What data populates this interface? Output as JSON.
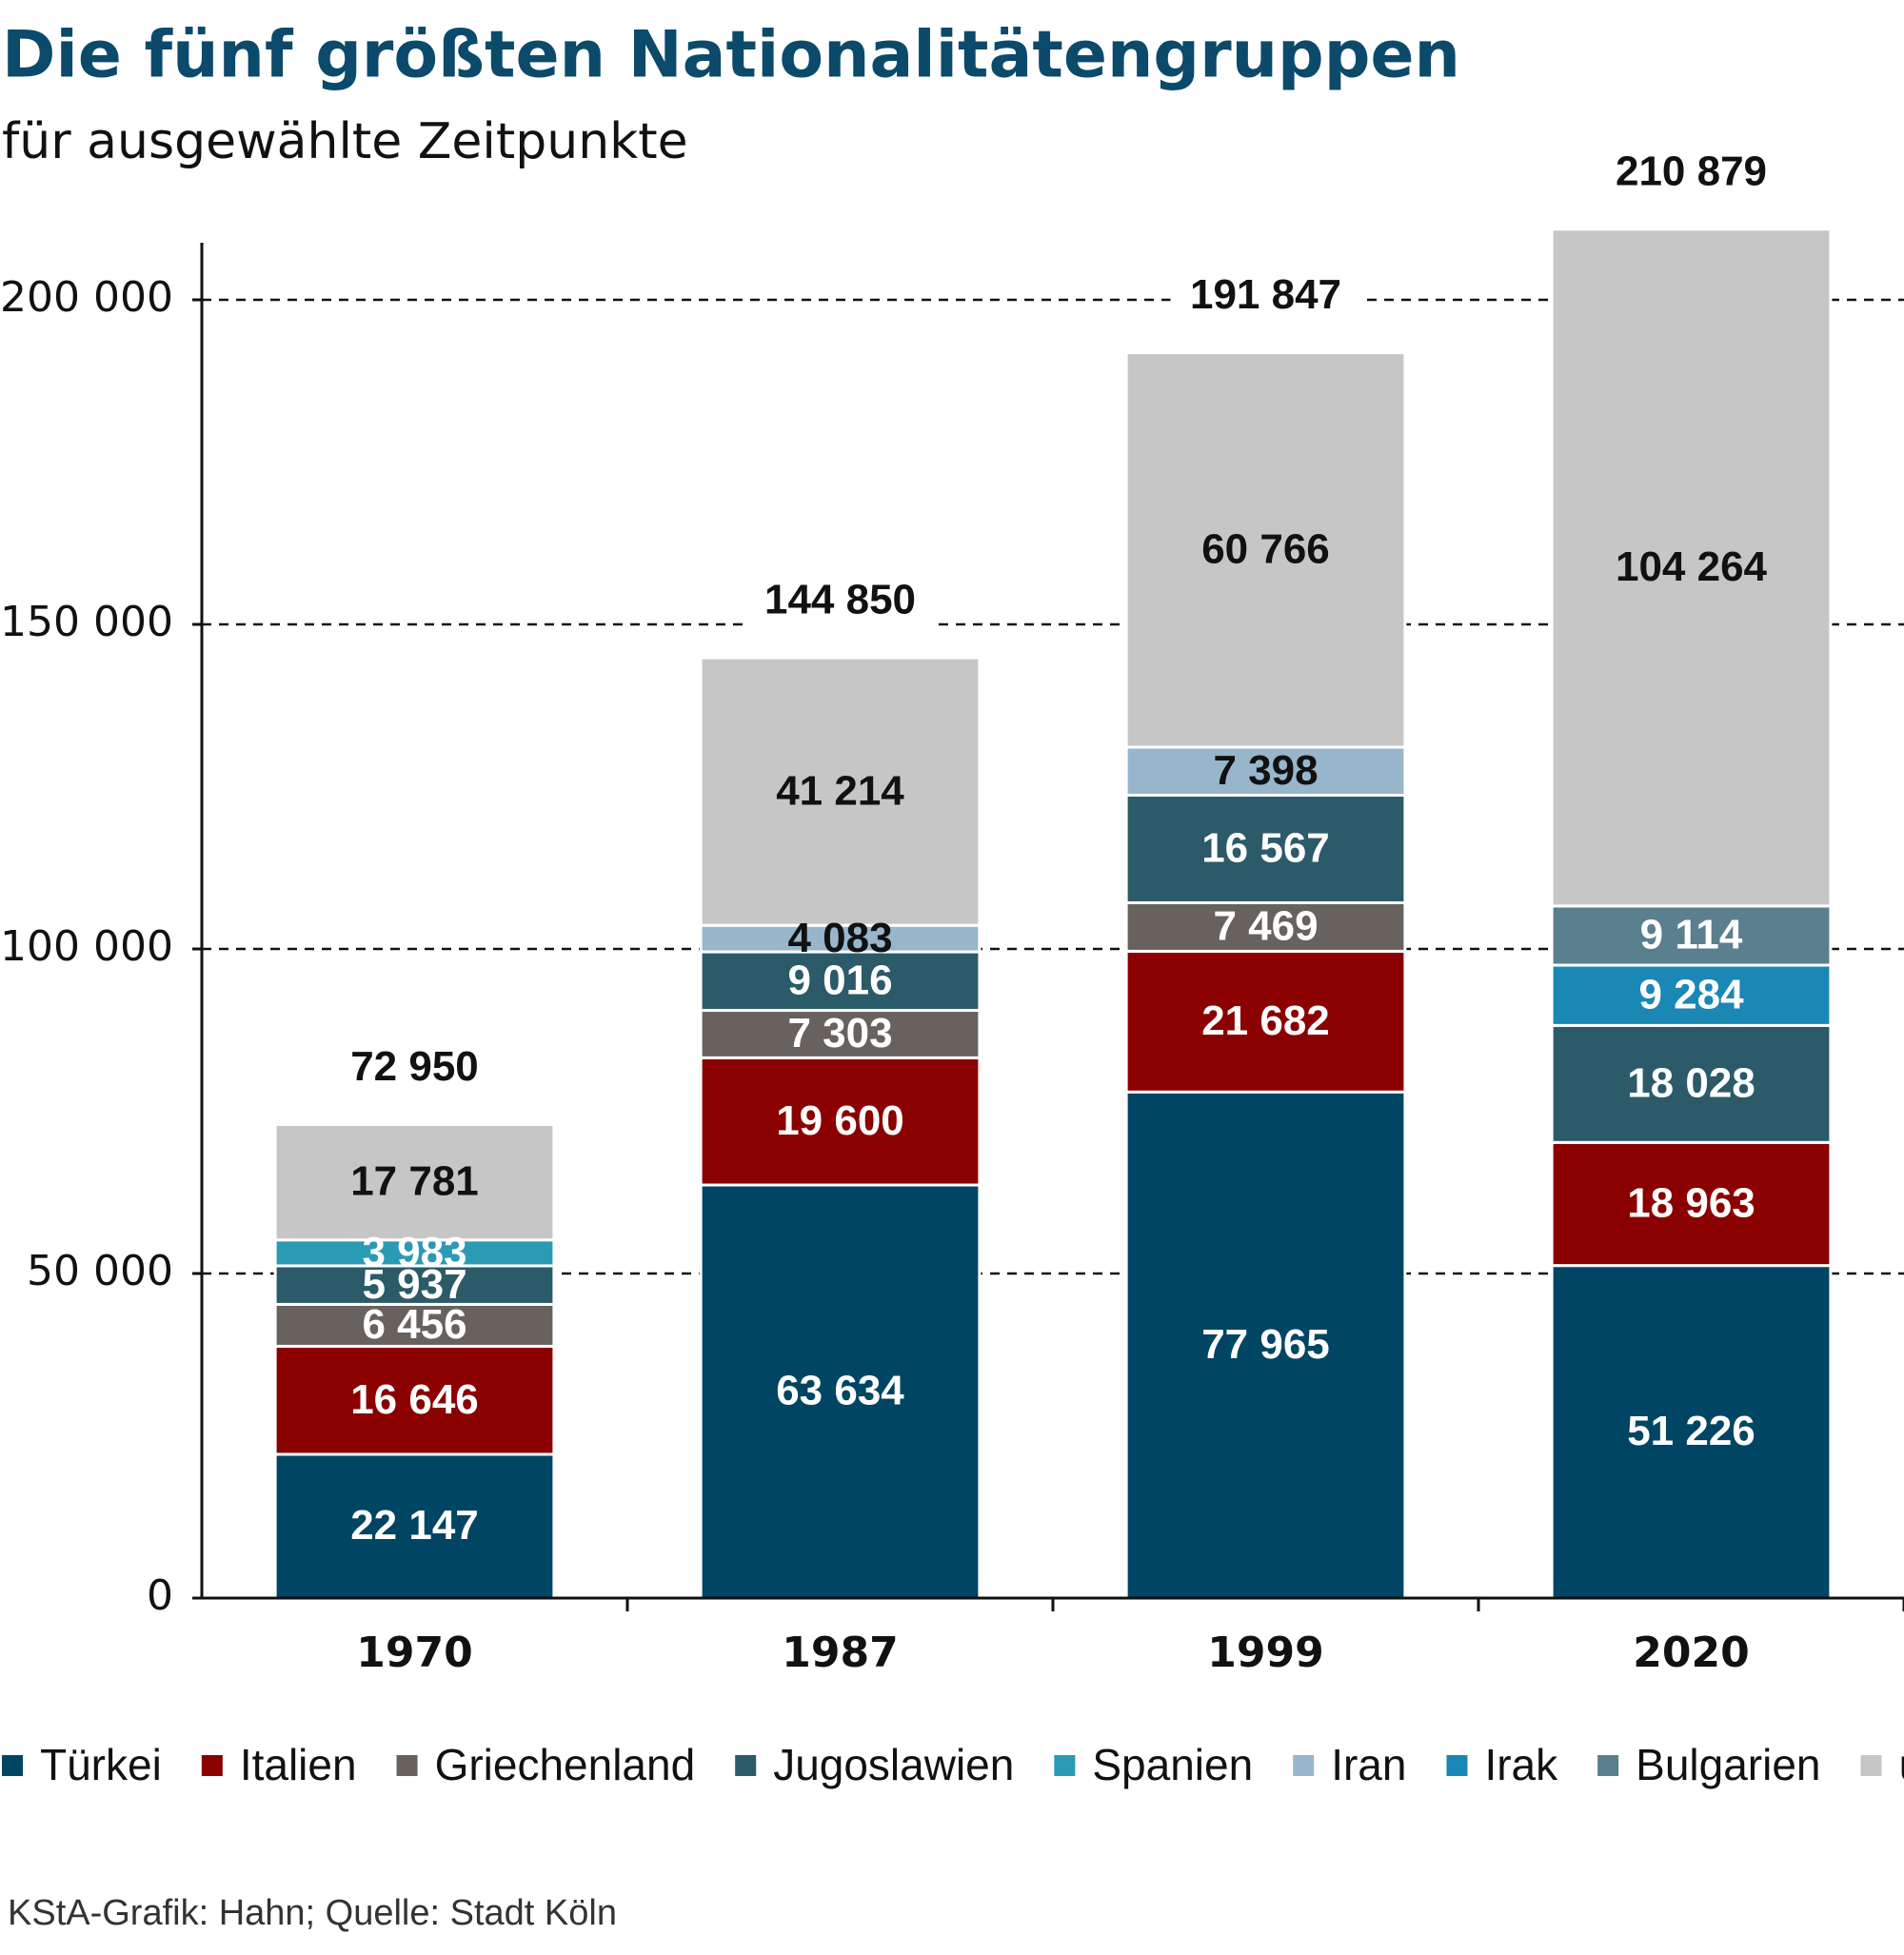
{
  "chart_data": {
    "type": "stacked-bar",
    "title": "Die fünf größten Nationalitätengruppen",
    "subtitle": "für ausgewählte Zeitpunkte",
    "source": "KStA-Grafik: Hahn; Quelle: Stadt Köln",
    "categories": [
      "1970",
      "1987",
      "1999",
      "2020"
    ],
    "series": [
      {
        "name": "Türkei",
        "color": "#004563",
        "values": [
          22147,
          63634,
          77965,
          51226
        ],
        "value_labels": [
          "22 147",
          "63 634",
          "77 965",
          "51 226"
        ]
      },
      {
        "name": "Italien",
        "color": "#8b0000",
        "values": [
          16646,
          19600,
          21682,
          18963
        ],
        "value_labels": [
          "16 646",
          "19 600",
          "21 682",
          "18 963"
        ]
      },
      {
        "name": "Griechenland",
        "color": "#67625d",
        "values": [
          6456,
          7303,
          7469,
          null
        ],
        "value_labels": [
          "6 456",
          "7 303",
          "7 469",
          null
        ]
      },
      {
        "name": "Jugoslawien",
        "color": "#2b5a68",
        "values": [
          5937,
          9016,
          16567,
          18028
        ],
        "value_labels": [
          "5 937",
          "9 016",
          "16 567",
          "18 028"
        ]
      },
      {
        "name": "Spanien",
        "color": "#2a9ab5",
        "values": [
          3983,
          null,
          null,
          null
        ],
        "value_labels": [
          "3 983",
          null,
          null,
          null
        ]
      },
      {
        "name": "Iran",
        "color": "#97b6cc",
        "values": [
          null,
          4083,
          7398,
          null
        ],
        "value_labels": [
          null,
          "4 083",
          "7 398",
          null
        ]
      },
      {
        "name": "Irak",
        "color": "#1a87b5",
        "values": [
          null,
          null,
          null,
          9284
        ],
        "value_labels": [
          null,
          null,
          null,
          "9 284"
        ]
      },
      {
        "name": "Bulgarien",
        "color": "#5a7f8e",
        "values": [
          null,
          null,
          null,
          9114
        ],
        "value_labels": [
          null,
          null,
          null,
          "9 114"
        ]
      },
      {
        "name": "übrige",
        "color": "#c6c6c6",
        "values": [
          17781,
          41214,
          60766,
          104264
        ],
        "value_labels": [
          "17 781",
          "41 214",
          "60 766",
          "104 264"
        ]
      }
    ],
    "totals": {
      "values": [
        72950,
        144850,
        191847,
        210879
      ],
      "value_labels": [
        "72 950",
        "144 850",
        "191 847",
        "210 879"
      ]
    },
    "ylim": [
      0,
      210879
    ],
    "yticks": [
      0,
      {
        "value": 50000,
        "label": "50 000"
      },
      {
        "value": 100000,
        "label": "100 000"
      },
      {
        "value": 150000,
        "label": "150 000"
      },
      {
        "value": 200000,
        "label": "200 000"
      }
    ],
    "grid": true
  }
}
